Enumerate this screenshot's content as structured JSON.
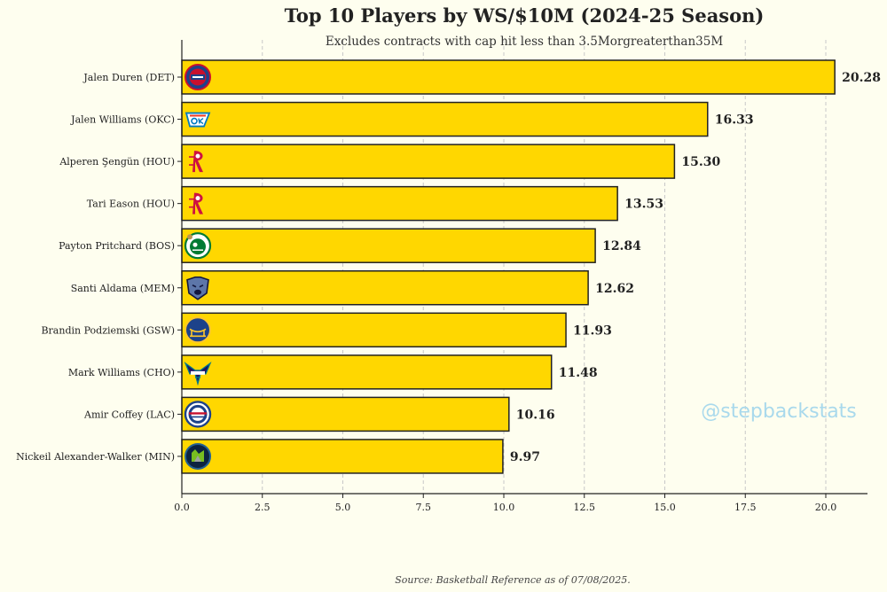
{
  "title": "Top 10 Players by WS/$10M (2024-25 Season)",
  "subtitle": "Excludes contracts with cap hit less than 3.5Morgreaterthan35M",
  "source": "Source: Basketball Reference as of 07/08/2025.",
  "watermark": "@stepbackstats",
  "colors": {
    "background": "#fefeef",
    "bar_fill": "#ffd700",
    "bar_stroke": "#222222",
    "grid": "#c8c8c8",
    "watermark": "#a9d9ec"
  },
  "chart_data": {
    "type": "bar",
    "orientation": "horizontal",
    "title": "Top 10 Players by WS/$10M (2024-25 Season)",
    "subtitle": "Excludes contracts with cap hit less than 3.5Morgreaterthan35M",
    "xlabel": "",
    "ylabel": "",
    "xlim": [
      0,
      21.3
    ],
    "xticks": [
      0,
      2.5,
      5,
      7.5,
      10,
      12.5,
      15,
      17.5,
      20
    ],
    "xtick_labels": [
      "0.0",
      "2.5",
      "5.0",
      "7.5",
      "10.0",
      "12.5",
      "15.0",
      "17.5",
      "20.0"
    ],
    "grid": "vertical dashed",
    "categories": [
      "Jalen Duren (DET)",
      "Jalen Williams (OKC)",
      "Alperen Şengün (HOU)",
      "Tari Eason (HOU)",
      "Payton Pritchard (BOS)",
      "Santi Aldama (MEM)",
      "Brandin Podziemski (GSW)",
      "Mark Williams (CHO)",
      "Amir Coffey (LAC)",
      "Nickeil Alexander-Walker (MIN)"
    ],
    "values": [
      20.28,
      16.33,
      15.3,
      13.53,
      12.84,
      12.62,
      11.93,
      11.48,
      10.16,
      9.97
    ],
    "value_labels": [
      "20.28",
      "16.33",
      "15.30",
      "13.53",
      "12.84",
      "12.62",
      "11.93",
      "11.48",
      "10.16",
      "9.97"
    ],
    "team_logos": [
      "pistons-logo",
      "thunder-logo",
      "rockets-logo",
      "rockets-logo",
      "celtics-logo",
      "grizzlies-logo",
      "warriors-logo",
      "hornets-logo",
      "clippers-logo",
      "timberwolves-logo"
    ]
  }
}
